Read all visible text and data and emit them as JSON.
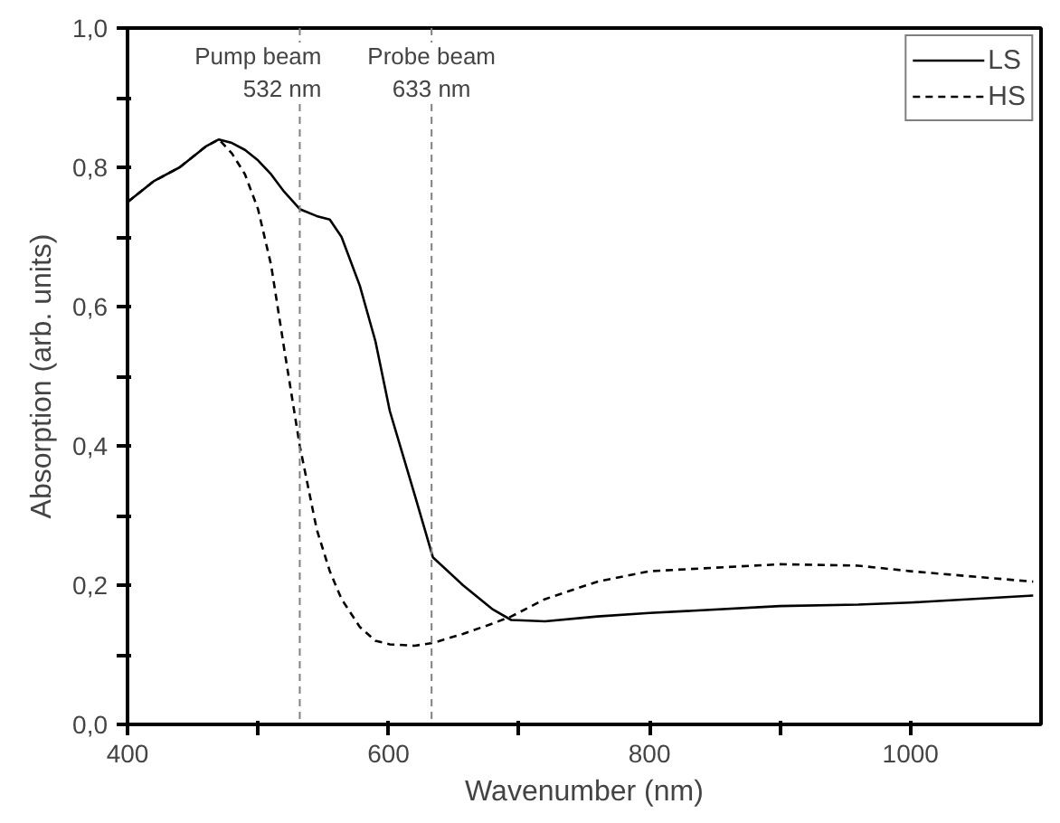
{
  "chart_data": {
    "type": "line",
    "xlabel": "Wavenumber (nm)",
    "ylabel": "Absorption (arb. units)",
    "x": [
      400,
      420,
      440,
      460,
      470,
      480,
      490,
      500,
      510,
      520,
      532,
      545,
      555,
      564,
      578,
      590,
      601,
      620,
      634,
      657,
      680,
      694,
      720,
      760,
      800,
      900,
      960,
      1000,
      1094
    ],
    "series": [
      {
        "name": "LS",
        "color": "#000000",
        "line_style": "solid",
        "values": [
          0.75,
          0.78,
          0.8,
          0.83,
          0.84,
          0.835,
          0.825,
          0.81,
          0.79,
          0.765,
          0.74,
          0.73,
          0.725,
          0.7,
          0.63,
          0.55,
          0.45,
          0.33,
          0.24,
          0.2,
          0.165,
          0.15,
          0.148,
          0.155,
          0.16,
          0.17,
          0.172,
          0.175,
          0.185
        ]
      },
      {
        "name": "HS",
        "color": "#000000",
        "line_style": "dashed",
        "values": [
          0.75,
          0.78,
          0.8,
          0.83,
          0.84,
          0.82,
          0.79,
          0.74,
          0.66,
          0.54,
          0.4,
          0.28,
          0.22,
          0.18,
          0.14,
          0.12,
          0.115,
          0.113,
          0.117,
          0.13,
          0.145,
          0.155,
          0.18,
          0.205,
          0.22,
          0.23,
          0.228,
          0.22,
          0.205
        ]
      }
    ],
    "xlim": [
      400,
      1100
    ],
    "ylim": [
      0,
      1.0
    ],
    "xticks": [
      400,
      {
        "value": 500,
        "label": null
      },
      600,
      {
        "value": 700,
        "label": null
      },
      800,
      {
        "value": 900,
        "label": null
      },
      1000
    ],
    "yticks": [
      {
        "value": 0,
        "label": "0,0"
      },
      {
        "value": 0.1,
        "label": null
      },
      {
        "value": 0.2,
        "label": "0,2"
      },
      {
        "value": 0.3,
        "label": null
      },
      {
        "value": 0.4,
        "label": "0,4"
      },
      {
        "value": 0.5,
        "label": null
      },
      {
        "value": 0.6,
        "label": "0,6"
      },
      {
        "value": 0.7,
        "label": null
      },
      {
        "value": 0.8,
        "label": "0,8"
      },
      {
        "value": 0.9,
        "label": null
      },
      {
        "value": 1.0,
        "label": "1,0"
      }
    ],
    "ref_lines": [
      {
        "axis": "x",
        "value": 532,
        "label": "Pump beam\n532 nm",
        "color": "#808080",
        "line_style": "dashed"
      },
      {
        "axis": "x",
        "value": 633,
        "label": "Probe beam\n633 nm",
        "color": "#808080",
        "line_style": "dashed"
      }
    ],
    "legend": "top right",
    "grid": false
  }
}
